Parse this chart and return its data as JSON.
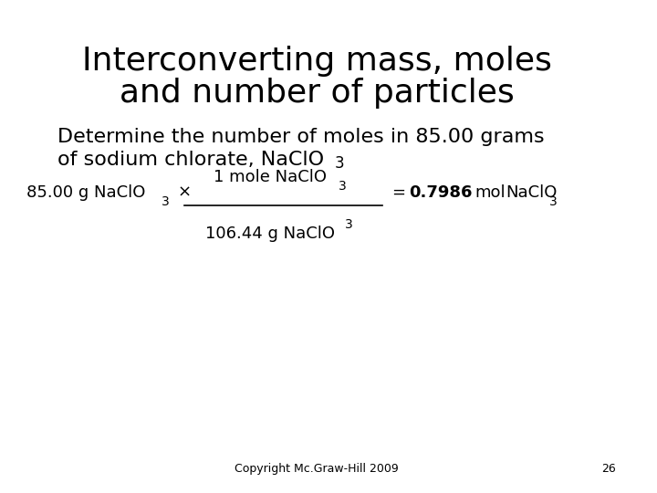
{
  "title_line1": "Interconverting mass, moles",
  "title_line2": "and number of particles",
  "subtitle_line1": "Determine the number of moles in 85.00 grams",
  "subtitle_line2": "of sodium chlorate, NaClO",
  "bg_color": "#ffffff",
  "title_fontsize": 26,
  "subtitle_fontsize": 16,
  "equation_fontsize": 13,
  "footer_text": "Copyright Mc.Graw-Hill 2009",
  "footer_page": "26"
}
